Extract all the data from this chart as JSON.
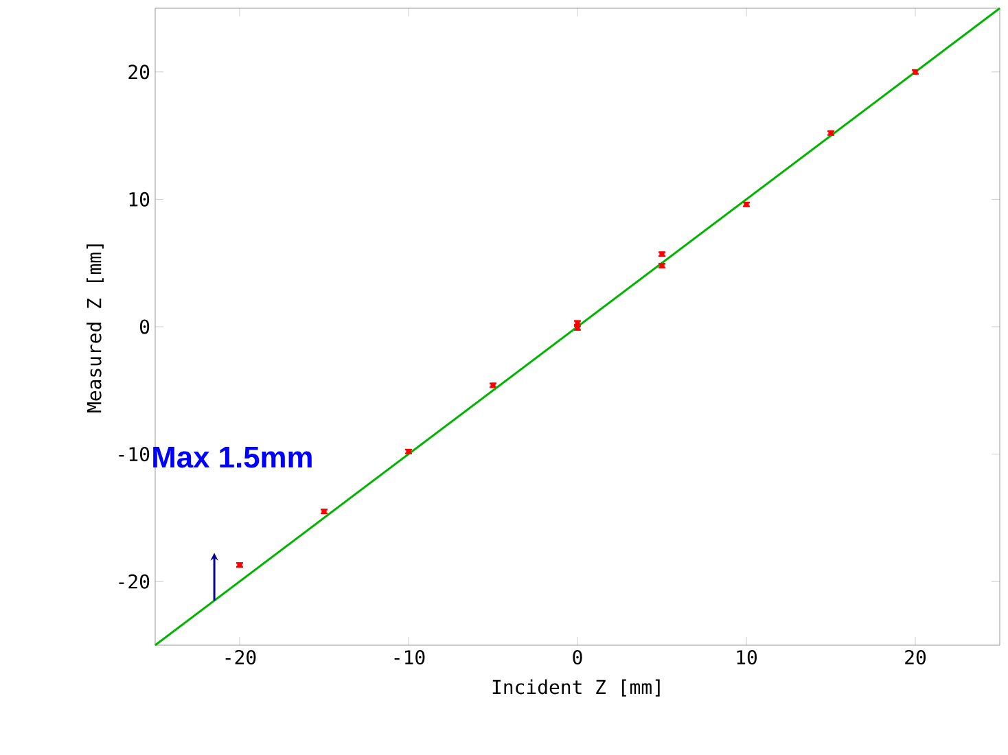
{
  "chart_data": {
    "type": "scatter",
    "xlabel": "Incident Z [mm]",
    "ylabel": "Measured Z [mm]",
    "annotations": [
      "Max 1.5mm"
    ],
    "series": [
      {
        "color": "#ff0000",
        "marker": "square",
        "x": [
          -20,
          -15,
          -10,
          -5,
          0,
          0,
          5,
          5,
          10,
          15,
          20
        ],
        "values": [
          -18.7,
          -14.5,
          -9.8,
          -4.6,
          0.3,
          -0.1,
          5.7,
          4.8,
          9.6,
          15.2,
          20.0
        ],
        "errors": [
          0.15,
          0.15,
          0.15,
          0.15,
          0.15,
          0.15,
          0.15,
          0.15,
          0.15,
          0.15,
          0.15
        ]
      },
      {
        "type": "line",
        "color": "#00b400",
        "line_style": "solid",
        "x": [
          -25,
          25
        ],
        "values": [
          -25,
          25
        ]
      }
    ],
    "xlim": [
      -25,
      25
    ],
    "ylim": [
      -25,
      25
    ],
    "xticks": [
      -20,
      -10,
      0,
      10,
      20
    ],
    "yticks": [
      -20,
      -10,
      0,
      10,
      20
    ],
    "grid": false
  }
}
